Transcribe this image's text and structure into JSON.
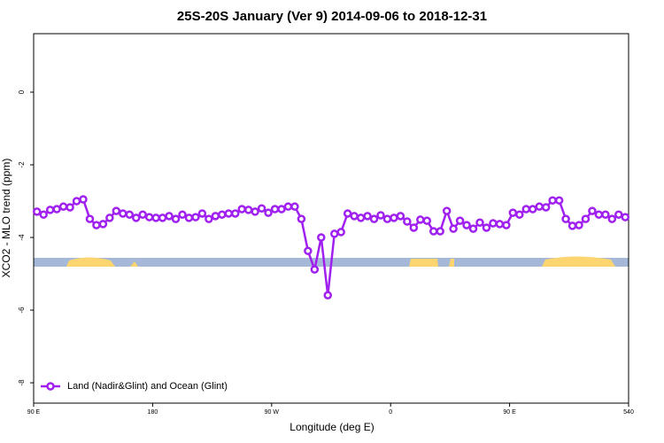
{
  "chart_data": {
    "type": "line",
    "title": "25S-20S January (Ver 9)   2014-09-06 to 2018-12-31",
    "xlabel": "Longitude (deg E)",
    "ylabel": "XCO2 - MLO trend (ppm)",
    "x": [
      92.5,
      97.5,
      102.5,
      107.5,
      112.5,
      117.5,
      122.5,
      127.5,
      132.5,
      137.5,
      142.5,
      147.5,
      152.5,
      157.5,
      162.5,
      167.5,
      172.5,
      177.5,
      182.5,
      187.5,
      192.5,
      197.5,
      202.5,
      207.5,
      212.5,
      217.5,
      222.5,
      227.5,
      232.5,
      237.5,
      242.5,
      247.5,
      252.5,
      257.5,
      262.5,
      267.5,
      272.5,
      277.5,
      282.5,
      287.5,
      292.5,
      297.5,
      302.5,
      307.5,
      312.5,
      317.5,
      322.5,
      327.5,
      332.5,
      337.5,
      342.5,
      347.5,
      352.5,
      357.5,
      362.5,
      367.5,
      372.5,
      377.5,
      382.5,
      387.5,
      392.5,
      397.5,
      402.5,
      407.5,
      412.5,
      417.5,
      422.5,
      427.5,
      432.5,
      437.5,
      442.5,
      447.5,
      452.5,
      457.5,
      462.5,
      467.5,
      472.5,
      477.5,
      482.5,
      487.5,
      492.5,
      497.5,
      502.5,
      507.5,
      512.5,
      517.5,
      522.5,
      527.5,
      532.5,
      537.5
    ],
    "series": [
      {
        "name": "Land (Nadir&Glint) and Ocean (Glint)",
        "color": "#a020f0",
        "values": [
          -3.29,
          -3.37,
          -3.24,
          -3.22,
          -3.15,
          -3.17,
          -3.0,
          -2.95,
          -3.49,
          -3.66,
          -3.63,
          -3.46,
          -3.27,
          -3.34,
          -3.37,
          -3.46,
          -3.37,
          -3.44,
          -3.46,
          -3.46,
          -3.41,
          -3.49,
          -3.37,
          -3.46,
          -3.44,
          -3.34,
          -3.49,
          -3.41,
          -3.37,
          -3.34,
          -3.34,
          -3.22,
          -3.24,
          -3.29,
          -3.2,
          -3.32,
          -3.22,
          -3.22,
          -3.15,
          -3.15,
          -3.49,
          -4.37,
          -4.88,
          -4.0,
          -5.59,
          -3.9,
          -3.85,
          -3.34,
          -3.41,
          -3.46,
          -3.41,
          -3.49,
          -3.39,
          -3.49,
          -3.46,
          -3.41,
          -3.56,
          -3.73,
          -3.51,
          -3.54,
          -3.83,
          -3.83,
          -3.27,
          -3.76,
          -3.54,
          -3.66,
          -3.76,
          -3.59,
          -3.73,
          -3.61,
          -3.63,
          -3.66,
          -3.32,
          -3.37,
          -3.22,
          -3.22,
          -3.15,
          -3.17,
          -2.98,
          -2.98,
          -3.49,
          -3.68,
          -3.66,
          -3.49,
          -3.27,
          -3.37,
          -3.37,
          -3.49,
          -3.37,
          -3.44
        ]
      }
    ],
    "xlim": [
      90,
      540
    ],
    "xticks": [
      {
        "value": 90,
        "label": "90 E"
      },
      180,
      {
        "value": 270,
        "label": "90 W"
      },
      {
        "value": 360,
        "label": "0"
      },
      {
        "value": 450,
        "label": "90 E"
      },
      540
    ],
    "ylim": [
      -8.56,
      1.61
    ],
    "yticks": [
      0,
      -2,
      -4,
      -6,
      -8
    ],
    "legend": "bottom-left"
  }
}
